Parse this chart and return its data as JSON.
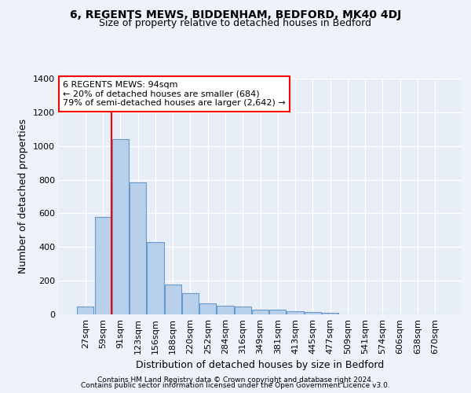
{
  "title_line1": "6, REGENTS MEWS, BIDDENHAM, BEDFORD, MK40 4DJ",
  "title_line2": "Size of property relative to detached houses in Bedford",
  "xlabel": "Distribution of detached houses by size in Bedford",
  "ylabel": "Number of detached properties",
  "categories": [
    "27sqm",
    "59sqm",
    "91sqm",
    "123sqm",
    "156sqm",
    "188sqm",
    "220sqm",
    "252sqm",
    "284sqm",
    "316sqm",
    "349sqm",
    "381sqm",
    "413sqm",
    "445sqm",
    "477sqm",
    "509sqm",
    "541sqm",
    "574sqm",
    "606sqm",
    "638sqm",
    "670sqm"
  ],
  "values": [
    45,
    578,
    1040,
    785,
    430,
    178,
    128,
    65,
    50,
    45,
    27,
    27,
    20,
    14,
    9,
    0,
    0,
    0,
    0,
    0,
    0
  ],
  "bar_color": "#b8d0ea",
  "bar_edge_color": "#6699cc",
  "red_line_x": 1.5,
  "ylim": [
    0,
    1400
  ],
  "yticks": [
    0,
    200,
    400,
    600,
    800,
    1000,
    1200,
    1400
  ],
  "annotation_text": "6 REGENTS MEWS: 94sqm\n← 20% of detached houses are smaller (684)\n79% of semi-detached houses are larger (2,642) →",
  "footnote1": "Contains HM Land Registry data © Crown copyright and database right 2024.",
  "footnote2": "Contains public sector information licensed under the Open Government Licence v3.0.",
  "bg_color": "#eef2fb",
  "plot_bg_color": "#e8eef8",
  "grid_color": "#ffffff",
  "title_fontsize": 10,
  "subtitle_fontsize": 9,
  "ylabel_fontsize": 9,
  "xlabel_fontsize": 9,
  "tick_fontsize": 8,
  "annotation_fontsize": 8
}
